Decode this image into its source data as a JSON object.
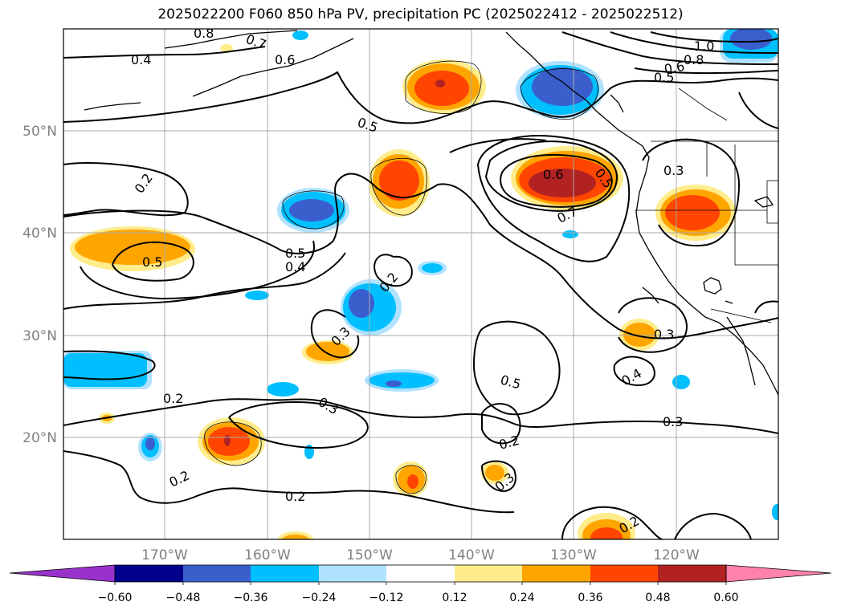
{
  "title": "2025022200 F060 850 hPa PV, precipitation PC (2025022412 - 2025022512)",
  "lat_labels": [
    "50°N",
    "40°N",
    "30°N",
    "20°N"
  ],
  "lon_labels": [
    "170°W",
    "160°W",
    "150°W",
    "140°W",
    "130°W",
    "120°W"
  ],
  "contour_labels": [
    "0.8",
    "0.7",
    "0.6",
    "0.4",
    "0.5",
    "1.0",
    "0.8",
    "0.6",
    "0.5",
    "0.2",
    "0.6",
    "0.5",
    "0.3",
    "0.7",
    "0.5",
    "0.5",
    "0.4",
    "0.2",
    "0.3",
    "0.5",
    "0.3",
    "0.4",
    "0.2",
    "0.3",
    "0.3",
    "0.2",
    "0.2",
    "0.3",
    "0.2",
    "0.2"
  ],
  "colorbar": {
    "ticks": [
      "−0.60",
      "−0.48",
      "−0.36",
      "−0.24",
      "−0.12",
      "0.12",
      "0.24",
      "0.36",
      "0.48",
      "0.60"
    ],
    "colors": [
      "#9932cc",
      "#00008b",
      "#3a5fcd",
      "#00bfff",
      "#b0e2ff",
      "#ffffff",
      "#ffec8b",
      "#ffa500",
      "#ff4500",
      "#b22222",
      "#ff82ab"
    ]
  },
  "colors": {
    "pos1": "#ffec8b",
    "pos2": "#ffa500",
    "pos3": "#ff4500",
    "pos4": "#b22222",
    "neg1": "#b0e2ff",
    "neg2": "#00bfff",
    "neg3": "#3a5fcd",
    "neg4": "#00008b"
  }
}
